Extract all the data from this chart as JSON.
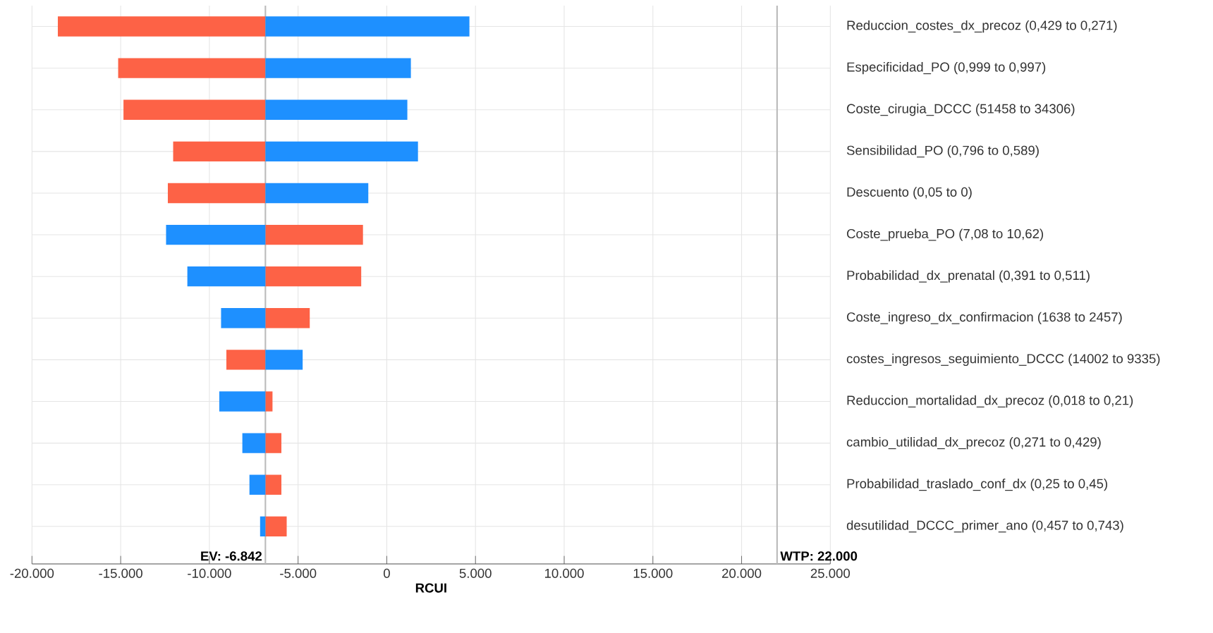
{
  "chart_data": {
    "type": "bar",
    "orientation": "horizontal",
    "xlabel": "RCUI",
    "categories": [
      "Reduccion_costes_dx_precoz (0,429 to 0,271)",
      "Especificidad_PO (0,999 to 0,997)",
      "Coste_cirugia_DCCC (51458 to 34306)",
      "Sensibilidad_PO (0,796 to 0,589)",
      "Descuento (0,05 to 0)",
      "Coste_prueba_PO (7,08 to 10,62)",
      "Probabilidad_dx_prenatal (0,391 to 0,511)",
      "Coste_ingreso_dx_confirmacion (1638 to 2457)",
      "costes_ingresos_seguimiento_DCCC (14002 to 9335)",
      "Reduccion_mortalidad_dx_precoz (0,018 to 0,21)",
      "cambio_utilidad_dx_precoz (0,271 to 0,429)",
      "Probabilidad_traslado_conf_dx (0,25 to 0,45)",
      "desutilidad_DCCC_primer_ano (0,457 to 0,743)"
    ],
    "series": [
      {
        "color": "#fd6246",
        "base": [
          -6842,
          -6842,
          -6842,
          -6842,
          -6842,
          -6842,
          -6842,
          -6842,
          -6842,
          -6842,
          -6842,
          -6842,
          -6842
        ],
        "values": [
          -11700,
          -8300,
          -8000,
          -5200,
          -5500,
          5500,
          5400,
          2500,
          -2200,
          400,
          900,
          900,
          1200
        ]
      },
      {
        "color": "#1e90ff",
        "base": [
          -6842,
          -6842,
          -6842,
          -6842,
          -6842,
          -6842,
          -6842,
          -6842,
          -6842,
          -6842,
          -6842,
          -6842,
          -6842
        ],
        "values": [
          11500,
          8200,
          8000,
          8600,
          5800,
          -5600,
          -4400,
          -2500,
          2100,
          -2600,
          -1300,
          -900,
          -300
        ]
      }
    ],
    "xlim": [
      -20000,
      25000
    ],
    "xticks": [
      {
        "value": -20000,
        "label": "-20.000"
      },
      {
        "value": -15000,
        "label": "-15.000"
      },
      {
        "value": -10000,
        "label": "-10.000"
      },
      {
        "value": -5000,
        "label": "-5.000"
      },
      0,
      {
        "value": 5000,
        "label": "5.000"
      },
      {
        "value": 10000,
        "label": "10.000"
      },
      {
        "value": 15000,
        "label": "15.000"
      },
      {
        "value": 20000,
        "label": "20.000"
      },
      {
        "value": 25000,
        "label": "25.000"
      }
    ],
    "ref_lines": [
      {
        "axis": "x",
        "value": -6842,
        "label": "EV: -6.842",
        "color": "#bbbbbb"
      },
      {
        "axis": "x",
        "value": 22000,
        "label": "WTP: 22.000",
        "color": "#bbbbbb"
      }
    ],
    "grid": true
  }
}
